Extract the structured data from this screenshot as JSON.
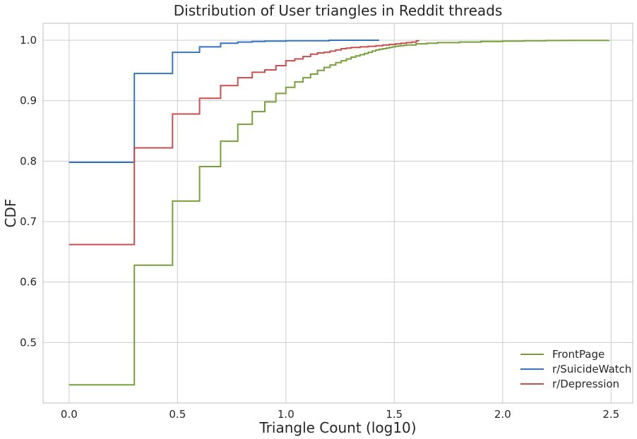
{
  "chart_data": {
    "type": "line",
    "title": "Distribution of User triangles in Reddit threads",
    "xlabel": "Triangle Count (log10)",
    "ylabel": "CDF",
    "xlim": [
      -0.12,
      2.6
    ],
    "ylim": [
      0.4,
      1.028
    ],
    "xticks": [
      0.0,
      0.5,
      1.0,
      1.5,
      2.0,
      2.5
    ],
    "xtick_labels": [
      "0.0",
      "0.5",
      "1.0",
      "1.5",
      "2.0",
      "2.5"
    ],
    "yticks": [
      0.5,
      0.6,
      0.7,
      0.8,
      0.9,
      1.0
    ],
    "ytick_labels": [
      "0.5",
      "0.6",
      "0.7",
      "0.8",
      "0.9",
      "1.0"
    ],
    "grid": true,
    "legend_position": "lower-right",
    "series": [
      {
        "name": "FrontPage",
        "color": "#77a138",
        "step": true,
        "x": [
          0.0,
          0.301,
          0.477,
          0.602,
          0.699,
          0.778,
          0.845,
          0.903,
          0.954,
          1.0,
          1.041,
          1.079,
          1.114,
          1.146,
          1.176,
          1.204,
          1.23,
          1.255,
          1.279,
          1.301,
          1.322,
          1.342,
          1.362,
          1.38,
          1.398,
          1.415,
          1.431,
          1.447,
          1.462,
          1.477,
          1.491,
          1.505,
          1.518,
          1.531,
          1.544,
          1.556,
          1.6,
          1.65,
          1.7,
          1.8,
          1.9,
          2.0,
          2.1,
          2.2,
          2.3,
          2.49
        ],
        "y": [
          0.43,
          0.628,
          0.734,
          0.791,
          0.833,
          0.861,
          0.882,
          0.898,
          0.912,
          0.922,
          0.931,
          0.938,
          0.944,
          0.95,
          0.955,
          0.959,
          0.963,
          0.966,
          0.969,
          0.972,
          0.974,
          0.976,
          0.978,
          0.98,
          0.982,
          0.984,
          0.985,
          0.986,
          0.987,
          0.988,
          0.989,
          0.99,
          0.9905,
          0.991,
          0.9915,
          0.992,
          0.994,
          0.995,
          0.996,
          0.997,
          0.998,
          0.9985,
          0.999,
          0.9995,
          0.9998,
          1.0
        ]
      },
      {
        "name": "r/SuicideWatch",
        "color": "#3474c4",
        "step": true,
        "x": [
          0.0,
          0.301,
          0.477,
          0.602,
          0.699,
          0.778,
          0.845,
          0.903,
          1.0,
          1.2,
          1.43
        ],
        "y": [
          0.798,
          0.945,
          0.98,
          0.989,
          0.995,
          0.997,
          0.998,
          0.9985,
          0.999,
          1.0,
          1.0
        ]
      },
      {
        "name": "r/Depression",
        "color": "#c94f4f",
        "step": true,
        "x": [
          0.0,
          0.301,
          0.477,
          0.602,
          0.699,
          0.778,
          0.845,
          0.903,
          0.954,
          1.0,
          1.041,
          1.079,
          1.114,
          1.146,
          1.176,
          1.204,
          1.23,
          1.255,
          1.279,
          1.301,
          1.342,
          1.38,
          1.415,
          1.447,
          1.477,
          1.505,
          1.531,
          1.556,
          1.58,
          1.602,
          1.612
        ],
        "y": [
          0.662,
          0.822,
          0.878,
          0.904,
          0.925,
          0.938,
          0.947,
          0.951,
          0.958,
          0.966,
          0.969,
          0.973,
          0.977,
          0.979,
          0.98,
          0.982,
          0.984,
          0.986,
          0.987,
          0.988,
          0.989,
          0.99,
          0.991,
          0.992,
          0.993,
          0.994,
          0.995,
          0.996,
          0.997,
          0.999,
          1.0
        ]
      }
    ]
  }
}
